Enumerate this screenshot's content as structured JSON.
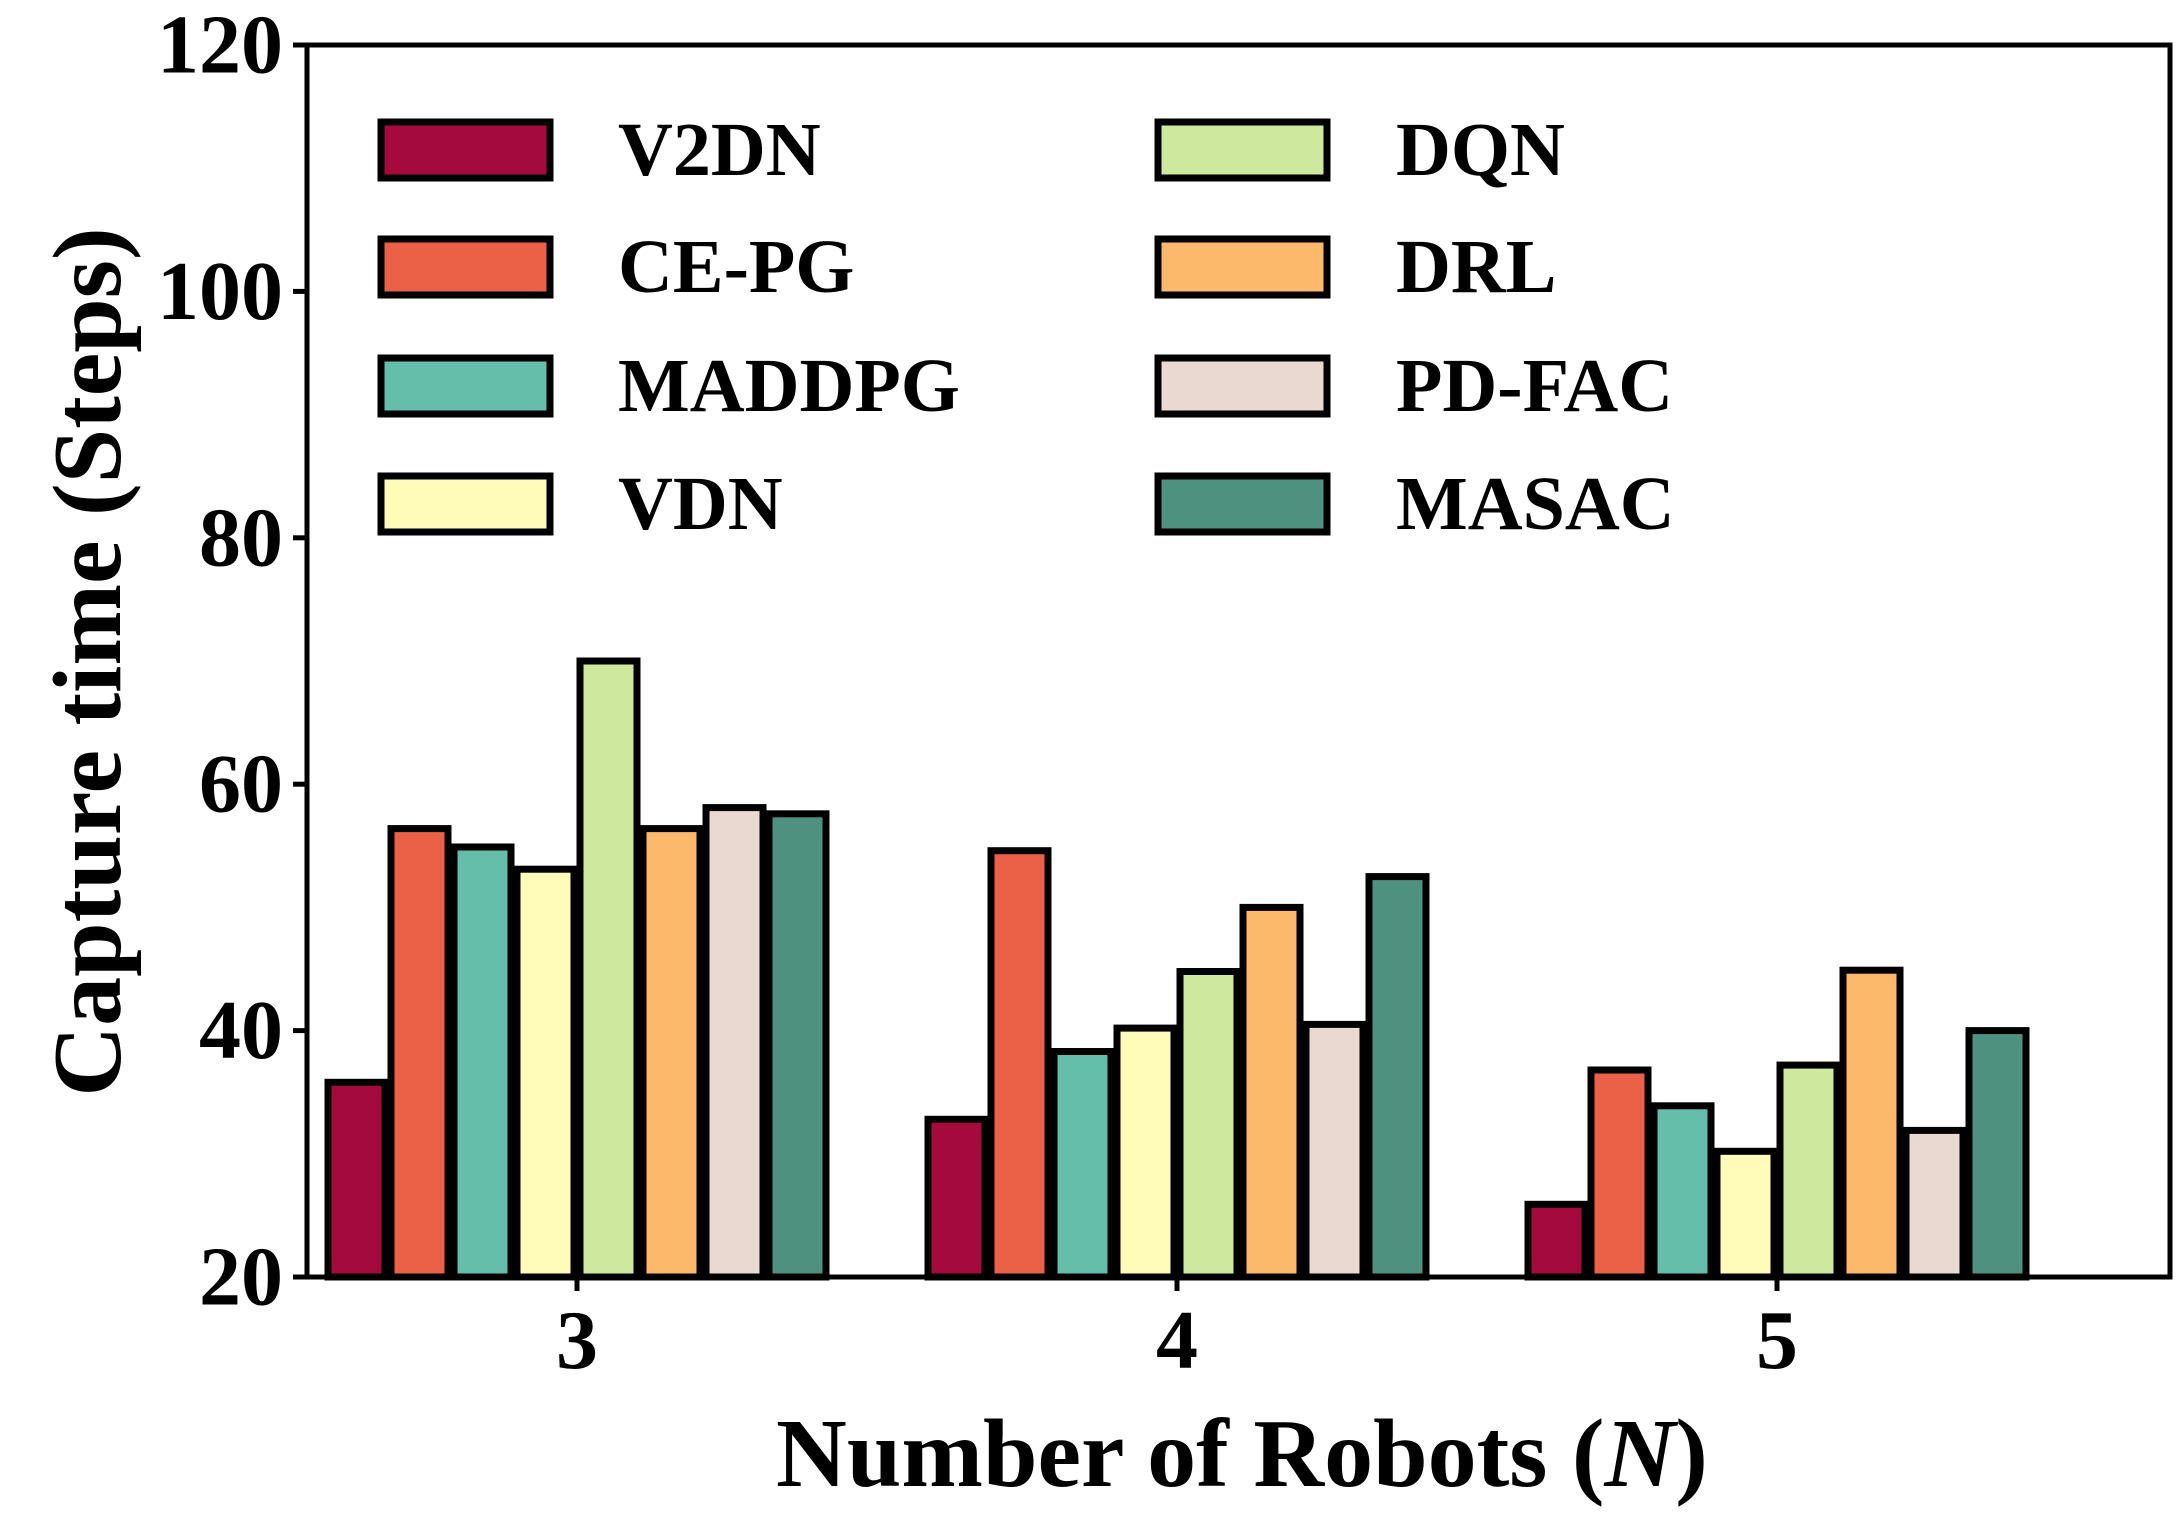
{
  "chart_data": {
    "type": "bar",
    "title": "",
    "xlabel": "Number of Robots (",
    "xlabel_italic": "N",
    "xlabel_end": ")",
    "ylabel": "Capture time (Steps)",
    "ylim": [
      20,
      120
    ],
    "yticks": [
      "20",
      "40",
      "60",
      "80",
      "100",
      "120"
    ],
    "categories": [
      "3",
      "4",
      "5"
    ],
    "legend_position": "top-left",
    "legend_columns": 2,
    "grid": false,
    "series": [
      {
        "name": "V2DN",
        "color": "#a50a3f",
        "values": [
          35.8,
          32.8,
          25.9
        ]
      },
      {
        "name": "CE-PG",
        "color": "#ea6148",
        "values": [
          56.4,
          54.6,
          36.8
        ]
      },
      {
        "name": "MADDPG",
        "color": "#64bea9",
        "values": [
          54.9,
          38.3,
          33.9
        ]
      },
      {
        "name": "VDN",
        "color": "#fffbb9",
        "values": [
          53.1,
          40.2,
          30.2
        ]
      },
      {
        "name": "DQN",
        "color": "#cee89d",
        "values": [
          70.0,
          44.8,
          37.2
        ]
      },
      {
        "name": "DRL",
        "color": "#fcb96b",
        "values": [
          56.4,
          50.0,
          44.9
        ]
      },
      {
        "name": "PD-FAC",
        "color": "#ead9d0",
        "values": [
          58.1,
          40.5,
          31.9
        ]
      },
      {
        "name": "MASAC",
        "color": "#4f917f",
        "values": [
          57.6,
          52.5,
          40.0
        ]
      }
    ]
  }
}
